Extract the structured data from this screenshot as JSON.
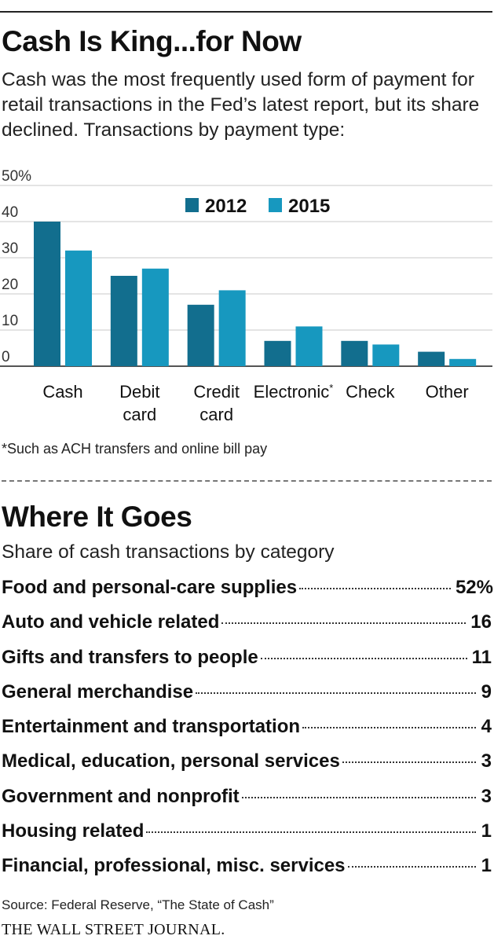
{
  "header": {
    "title": "Cash Is King...for Now",
    "subtitle": "Cash was the most frequently used form of payment for retail transactions in the Fed’s latest report, but its share declined. Transactions by payment type:"
  },
  "chart_data": {
    "type": "bar",
    "categories": [
      "Cash",
      "Debit card",
      "Credit card",
      "Electronic*",
      "Check",
      "Other"
    ],
    "category_lines": [
      [
        "Cash"
      ],
      [
        "Debit",
        "card"
      ],
      [
        "Credit",
        "card"
      ],
      [
        "Electronic*"
      ],
      [
        "Check"
      ],
      [
        "Other"
      ]
    ],
    "series": [
      {
        "name": "2012",
        "values": [
          40,
          25,
          17,
          7,
          7,
          4
        ],
        "color": "#126e8e"
      },
      {
        "name": "2015",
        "values": [
          32,
          27,
          21,
          11,
          6,
          2
        ],
        "color": "#1798bf"
      }
    ],
    "y_ticks": [
      0,
      10,
      20,
      30,
      40,
      50
    ],
    "y_tick_labels": [
      "0",
      "10",
      "20",
      "30",
      "40",
      "50%"
    ],
    "ylim": [
      0,
      50
    ],
    "legend_position": "top-center",
    "grid": true
  },
  "footnote": "*Such as ACH transfers and online bill pay",
  "breakdown": {
    "title": "Where It Goes",
    "subtitle": "Share of cash transactions by category",
    "items": [
      {
        "label": "Food and personal-care supplies",
        "value": "52%"
      },
      {
        "label": "Auto and vehicle related",
        "value": "16"
      },
      {
        "label": "Gifts and transfers to people",
        "value": "11"
      },
      {
        "label": "General merchandise",
        "value": "9"
      },
      {
        "label": "Entertainment and transportation",
        "value": "4"
      },
      {
        "label": "Medical, education, personal services",
        "value": "3"
      },
      {
        "label": "Government and nonprofit",
        "value": "3"
      },
      {
        "label": "Housing related",
        "value": "1"
      },
      {
        "label": "Financial, professional, misc. services",
        "value": "1"
      }
    ]
  },
  "source": "Source: Federal Reserve, “The State of Cash”",
  "publisher": "THE WALL STREET JOURNAL."
}
